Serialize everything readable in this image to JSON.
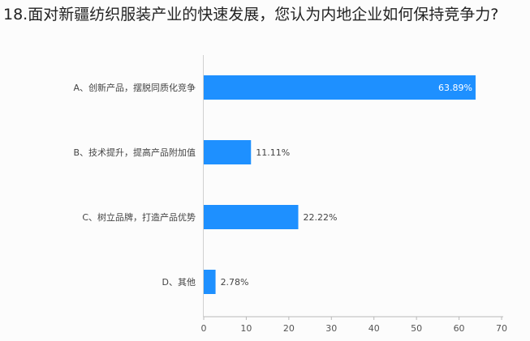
{
  "title": "18.面对新疆纺织服装产业的快速发展，您认为内地企业如何保持竞争力?",
  "chart_data": {
    "type": "bar",
    "orientation": "horizontal",
    "categories": [
      "A、创新产品，摆脱同质化竞争",
      "B、技术提升，提高产品附加值",
      "C、树立品牌，打造产品优势",
      "D、其他"
    ],
    "values": [
      63.89,
      11.11,
      22.22,
      2.78
    ],
    "data_labels": [
      "63.89%",
      "11.11%",
      "22.22%",
      "2.78%"
    ],
    "xlim": [
      0,
      70
    ],
    "xticks": [
      "0",
      "10",
      "20",
      "30",
      "40",
      "50",
      "60",
      "70"
    ],
    "grid": false,
    "color": "#1e90ff"
  }
}
